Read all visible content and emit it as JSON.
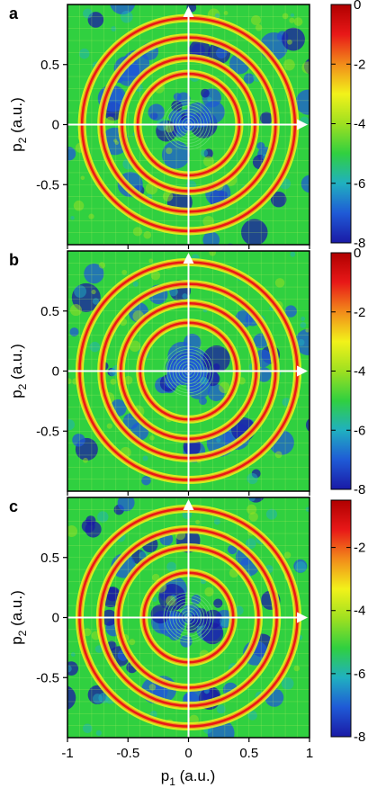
{
  "figure": {
    "x_axis_label_main": "p",
    "x_axis_label_sub": "1",
    "x_axis_label_unit": " (a.u.)",
    "y_axis_label_main": "p",
    "y_axis_label_sub": "2",
    "y_axis_label_unit": " (a.u.)"
  },
  "colormap": [
    "#1a1aa6",
    "#1f5ad6",
    "#20b0c0",
    "#30d040",
    "#9ee020",
    "#f2f21a",
    "#f28c1a",
    "#e81818",
    "#b00000"
  ],
  "chart_data": [
    {
      "type": "heatmap",
      "panel_label": "a",
      "x_ticks": [
        -1,
        -0.5,
        0,
        0.5,
        1
      ],
      "y_ticks": [
        0.5,
        0,
        -0.5
      ],
      "y_tick_labels": [
        "0.5",
        "0",
        "-0.5"
      ],
      "xlim": [
        -1,
        1
      ],
      "ylim": [
        -1,
        1
      ],
      "colorbar_ticks": [
        0,
        -2,
        -4,
        -6,
        -8
      ],
      "colorbar_tick_labels": [
        "0",
        "-2",
        "-4",
        "-6",
        "-8"
      ],
      "color_range": [
        -8,
        0
      ],
      "ring_radii": [
        0.42,
        0.55,
        0.72,
        0.88
      ],
      "arrows": [
        "+p1",
        "+p2"
      ]
    },
    {
      "type": "heatmap",
      "panel_label": "b",
      "x_ticks": [
        -1,
        -0.5,
        0,
        0.5,
        1
      ],
      "y_ticks": [
        0.5,
        0,
        -0.5
      ],
      "y_tick_labels": [
        "0.5",
        "0",
        "-0.5"
      ],
      "xlim": [
        -1,
        1
      ],
      "ylim": [
        -1,
        1
      ],
      "colorbar_ticks": [
        0,
        -2,
        -4,
        -6,
        -8
      ],
      "colorbar_tick_labels": [
        "0",
        "-2",
        "-4",
        "-6",
        "-8"
      ],
      "color_range": [
        -8,
        0
      ],
      "ring_radii": [
        0.4,
        0.56,
        0.72,
        0.9
      ],
      "arrows": [
        "+p1",
        "+p2"
      ]
    },
    {
      "type": "heatmap",
      "panel_label": "c",
      "x_ticks": [
        -1,
        -0.5,
        0,
        0.5,
        1
      ],
      "x_tick_labels": [
        "-1",
        "-0.5",
        "0",
        "0.5",
        "1"
      ],
      "y_ticks": [
        0.5,
        0,
        -0.5
      ],
      "y_tick_labels": [
        "0.5",
        "0",
        "-0.5"
      ],
      "xlim": [
        -1,
        1
      ],
      "ylim": [
        -1,
        1
      ],
      "colorbar_ticks": [
        -2,
        -4,
        -6,
        -8
      ],
      "colorbar_tick_labels": [
        "-2",
        "-4",
        "-6",
        "-8"
      ],
      "color_range": [
        -8,
        -0.5
      ],
      "ring_radii": [
        0.37,
        0.58,
        0.73,
        0.9
      ],
      "arrows": [
        "+p1",
        "+p2"
      ]
    }
  ]
}
